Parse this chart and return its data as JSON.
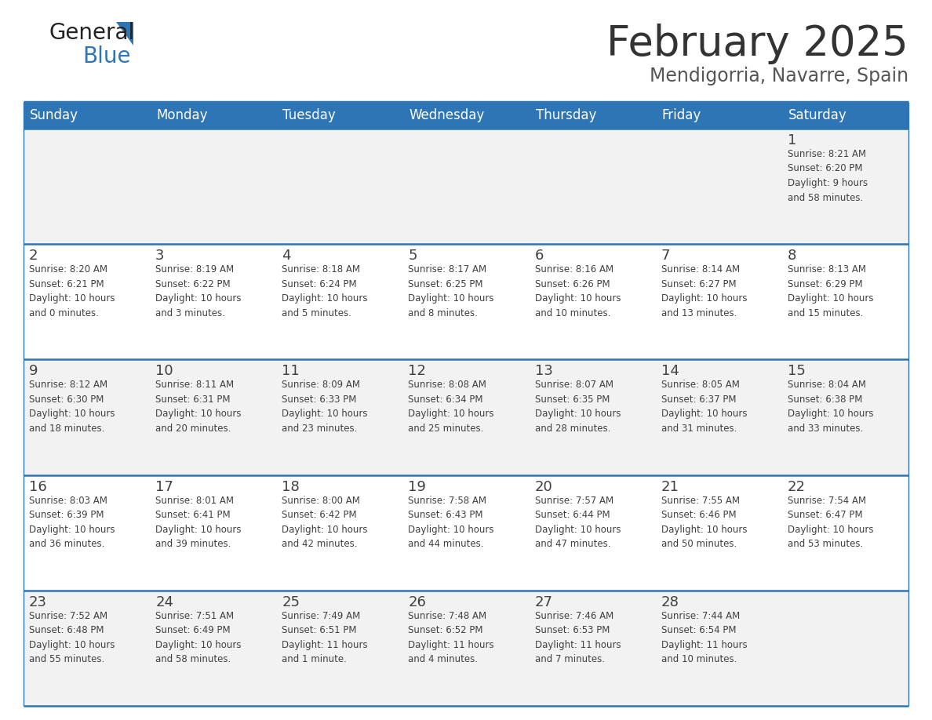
{
  "title": "February 2025",
  "subtitle": "Mendigorria, Navarre, Spain",
  "header_bg": "#2E75B6",
  "header_text_color": "#FFFFFF",
  "cell_bg_odd": "#F2F2F2",
  "cell_bg_even": "#FFFFFF",
  "border_color": "#2E75B6",
  "text_color": "#404040",
  "days_of_week": [
    "Sunday",
    "Monday",
    "Tuesday",
    "Wednesday",
    "Thursday",
    "Friday",
    "Saturday"
  ],
  "title_color": "#333333",
  "subtitle_color": "#555555",
  "logo_color1": "#222222",
  "logo_color2": "#2E75B6",
  "calendar_data": [
    [
      {
        "day": "",
        "info": ""
      },
      {
        "day": "",
        "info": ""
      },
      {
        "day": "",
        "info": ""
      },
      {
        "day": "",
        "info": ""
      },
      {
        "day": "",
        "info": ""
      },
      {
        "day": "",
        "info": ""
      },
      {
        "day": "1",
        "info": "Sunrise: 8:21 AM\nSunset: 6:20 PM\nDaylight: 9 hours\nand 58 minutes."
      }
    ],
    [
      {
        "day": "2",
        "info": "Sunrise: 8:20 AM\nSunset: 6:21 PM\nDaylight: 10 hours\nand 0 minutes."
      },
      {
        "day": "3",
        "info": "Sunrise: 8:19 AM\nSunset: 6:22 PM\nDaylight: 10 hours\nand 3 minutes."
      },
      {
        "day": "4",
        "info": "Sunrise: 8:18 AM\nSunset: 6:24 PM\nDaylight: 10 hours\nand 5 minutes."
      },
      {
        "day": "5",
        "info": "Sunrise: 8:17 AM\nSunset: 6:25 PM\nDaylight: 10 hours\nand 8 minutes."
      },
      {
        "day": "6",
        "info": "Sunrise: 8:16 AM\nSunset: 6:26 PM\nDaylight: 10 hours\nand 10 minutes."
      },
      {
        "day": "7",
        "info": "Sunrise: 8:14 AM\nSunset: 6:27 PM\nDaylight: 10 hours\nand 13 minutes."
      },
      {
        "day": "8",
        "info": "Sunrise: 8:13 AM\nSunset: 6:29 PM\nDaylight: 10 hours\nand 15 minutes."
      }
    ],
    [
      {
        "day": "9",
        "info": "Sunrise: 8:12 AM\nSunset: 6:30 PM\nDaylight: 10 hours\nand 18 minutes."
      },
      {
        "day": "10",
        "info": "Sunrise: 8:11 AM\nSunset: 6:31 PM\nDaylight: 10 hours\nand 20 minutes."
      },
      {
        "day": "11",
        "info": "Sunrise: 8:09 AM\nSunset: 6:33 PM\nDaylight: 10 hours\nand 23 minutes."
      },
      {
        "day": "12",
        "info": "Sunrise: 8:08 AM\nSunset: 6:34 PM\nDaylight: 10 hours\nand 25 minutes."
      },
      {
        "day": "13",
        "info": "Sunrise: 8:07 AM\nSunset: 6:35 PM\nDaylight: 10 hours\nand 28 minutes."
      },
      {
        "day": "14",
        "info": "Sunrise: 8:05 AM\nSunset: 6:37 PM\nDaylight: 10 hours\nand 31 minutes."
      },
      {
        "day": "15",
        "info": "Sunrise: 8:04 AM\nSunset: 6:38 PM\nDaylight: 10 hours\nand 33 minutes."
      }
    ],
    [
      {
        "day": "16",
        "info": "Sunrise: 8:03 AM\nSunset: 6:39 PM\nDaylight: 10 hours\nand 36 minutes."
      },
      {
        "day": "17",
        "info": "Sunrise: 8:01 AM\nSunset: 6:41 PM\nDaylight: 10 hours\nand 39 minutes."
      },
      {
        "day": "18",
        "info": "Sunrise: 8:00 AM\nSunset: 6:42 PM\nDaylight: 10 hours\nand 42 minutes."
      },
      {
        "day": "19",
        "info": "Sunrise: 7:58 AM\nSunset: 6:43 PM\nDaylight: 10 hours\nand 44 minutes."
      },
      {
        "day": "20",
        "info": "Sunrise: 7:57 AM\nSunset: 6:44 PM\nDaylight: 10 hours\nand 47 minutes."
      },
      {
        "day": "21",
        "info": "Sunrise: 7:55 AM\nSunset: 6:46 PM\nDaylight: 10 hours\nand 50 minutes."
      },
      {
        "day": "22",
        "info": "Sunrise: 7:54 AM\nSunset: 6:47 PM\nDaylight: 10 hours\nand 53 minutes."
      }
    ],
    [
      {
        "day": "23",
        "info": "Sunrise: 7:52 AM\nSunset: 6:48 PM\nDaylight: 10 hours\nand 55 minutes."
      },
      {
        "day": "24",
        "info": "Sunrise: 7:51 AM\nSunset: 6:49 PM\nDaylight: 10 hours\nand 58 minutes."
      },
      {
        "day": "25",
        "info": "Sunrise: 7:49 AM\nSunset: 6:51 PM\nDaylight: 11 hours\nand 1 minute."
      },
      {
        "day": "26",
        "info": "Sunrise: 7:48 AM\nSunset: 6:52 PM\nDaylight: 11 hours\nand 4 minutes."
      },
      {
        "day": "27",
        "info": "Sunrise: 7:46 AM\nSunset: 6:53 PM\nDaylight: 11 hours\nand 7 minutes."
      },
      {
        "day": "28",
        "info": "Sunrise: 7:44 AM\nSunset: 6:54 PM\nDaylight: 11 hours\nand 10 minutes."
      },
      {
        "day": "",
        "info": ""
      }
    ]
  ]
}
